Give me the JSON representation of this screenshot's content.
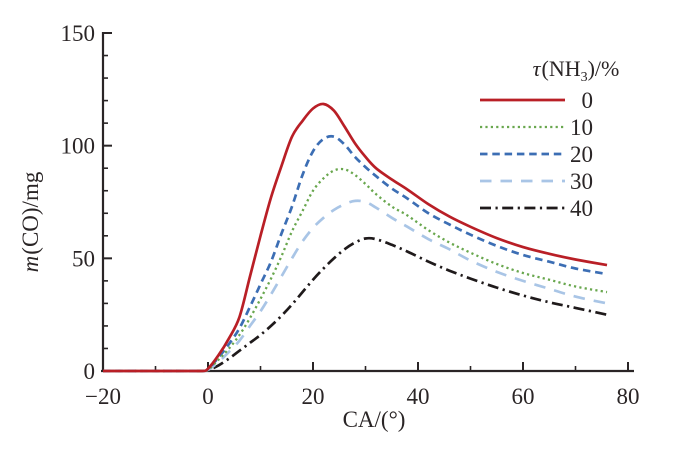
{
  "styles": {
    "background": "#ffffff",
    "axis_color": "#2a2526",
    "text_color": "#2a2526"
  },
  "chart_data": {
    "type": "line",
    "title": "",
    "xlabel": "CA/(°)",
    "ylabel": "m(CO)/mg",
    "ylabel_parts": {
      "italic": "m",
      "rest": "(CO)/mg"
    },
    "xlim": [
      -20,
      80
    ],
    "ylim": [
      0,
      150
    ],
    "grid": false,
    "x_major_ticks": [
      -20,
      0,
      20,
      40,
      60,
      80
    ],
    "x_tick_labels": [
      "−20",
      "0",
      "20",
      "40",
      "60",
      "80"
    ],
    "x_minor_ticks": [
      -10,
      10,
      30,
      50,
      70
    ],
    "y_major_ticks": [
      0,
      50,
      100,
      150
    ],
    "y_tick_labels": [
      "0",
      "50",
      "100",
      "150"
    ],
    "y_minor_ticks": [
      10,
      20,
      30,
      40,
      60,
      70,
      80,
      90,
      110,
      120,
      130,
      140
    ],
    "legend": {
      "position": "upper right",
      "title_text": "τ(NH₃)/%",
      "title_parts": {
        "italic": "τ",
        "pre_sub": "(NH",
        "sub": "3",
        "post_sub": ")/%"
      }
    },
    "x": [
      -20,
      -10,
      -5,
      -1,
      0,
      2,
      4,
      6,
      8,
      10,
      12,
      14,
      16,
      18,
      20,
      22,
      24,
      26,
      28,
      30,
      32,
      35,
      38,
      42,
      46,
      50,
      55,
      60,
      65,
      70,
      76
    ],
    "series": [
      {
        "name": "0",
        "color": "#b91f26",
        "dash": "solid",
        "values": [
          0,
          0,
          0,
          0,
          1,
          7,
          14.5,
          24,
          42,
          60,
          77,
          91,
          104,
          111,
          116.5,
          118.5,
          115.5,
          108.5,
          101,
          95,
          90,
          85,
          80.5,
          74,
          68.5,
          64,
          59,
          55,
          52,
          49.5,
          47
        ]
      },
      {
        "name": "10",
        "color": "#69a74e",
        "dash": "dotted",
        "values": [
          0,
          0,
          0,
          0,
          0.5,
          5,
          10,
          16,
          23.5,
          32,
          41,
          51,
          62,
          71,
          80,
          85.5,
          89,
          89.5,
          87,
          83,
          78.5,
          73,
          69,
          62.5,
          57,
          52.5,
          47.5,
          43.5,
          40.5,
          37.5,
          35
        ]
      },
      {
        "name": "20",
        "color": "#3c6eb4",
        "dash": "dashed",
        "values": [
          0,
          0,
          0,
          0,
          0.8,
          6,
          12,
          19,
          28.5,
          38.5,
          48.5,
          61,
          73,
          87,
          97.5,
          103,
          104,
          100.5,
          95,
          90.5,
          86.5,
          81,
          76.5,
          70,
          65,
          60.5,
          55.5,
          51.5,
          48.5,
          45.5,
          43
        ]
      },
      {
        "name": "30",
        "color": "#a9c5e6",
        "dash": "long-dash",
        "values": [
          0,
          0,
          0,
          0,
          0.5,
          4,
          8.5,
          13.5,
          20,
          26.5,
          34,
          42,
          50,
          57.5,
          63.5,
          68,
          71.5,
          74,
          75.5,
          75,
          72.5,
          68,
          64,
          58.5,
          54,
          49,
          44,
          40,
          36.5,
          33,
          30
        ]
      },
      {
        "name": "40",
        "color": "#1f1a1b",
        "dash": "dash-dot",
        "values": [
          0,
          0,
          0,
          0,
          0.3,
          2.5,
          5.5,
          9,
          12.5,
          16,
          20,
          24.5,
          29.5,
          35,
          40.5,
          45.5,
          50,
          54,
          57,
          58.8,
          58.5,
          56,
          53,
          48.5,
          44.5,
          41,
          37,
          33.5,
          30.5,
          28,
          25
        ]
      }
    ]
  }
}
